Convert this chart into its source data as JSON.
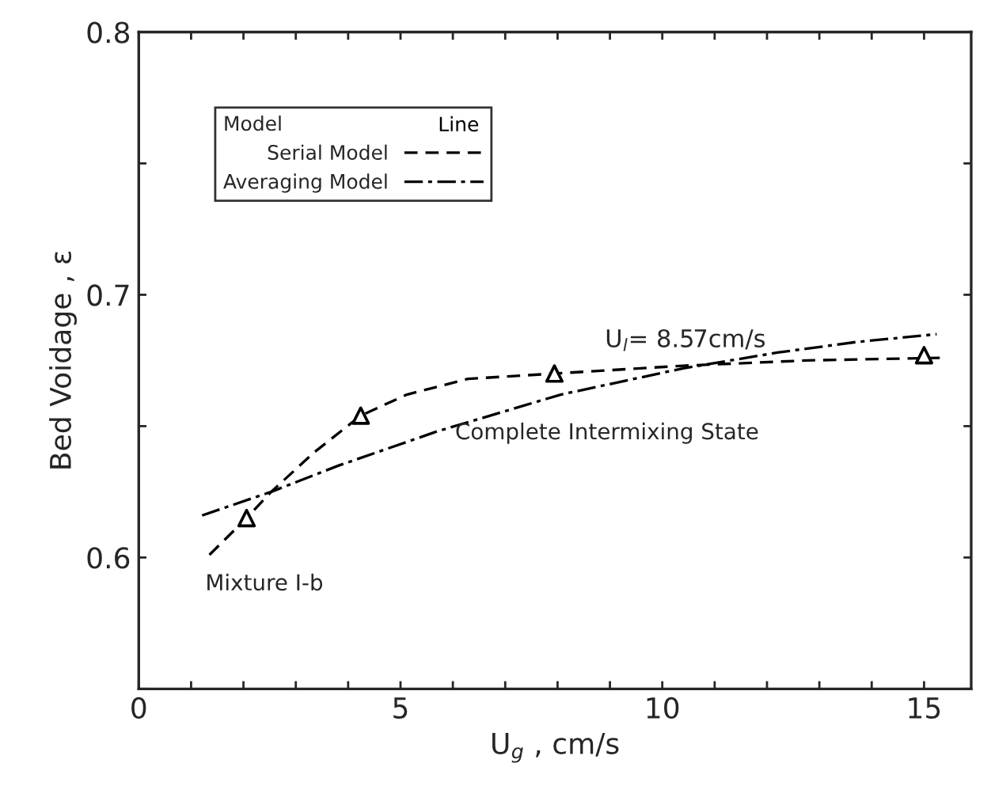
{
  "chart_data": {
    "type": "line",
    "xlabel": "U$_{g}$ , cm/s",
    "ylabel": "Bed Voidage , ε",
    "legend_title": "Model",
    "xlim": [
      0,
      15.9
    ],
    "ylim": [
      0.55,
      0.8
    ],
    "xticks": [
      0,
      {
        "value": 1,
        "label": null
      },
      {
        "value": 2,
        "label": null
      },
      {
        "value": 3,
        "label": null
      },
      {
        "value": 4,
        "label": null
      },
      5,
      {
        "value": 6,
        "label": null
      },
      {
        "value": 7,
        "label": null
      },
      {
        "value": 8,
        "label": null
      },
      {
        "value": 9,
        "label": null
      },
      10,
      {
        "value": 11,
        "label": null
      },
      {
        "value": 12,
        "label": null
      },
      {
        "value": 13,
        "label": null
      },
      {
        "value": 14,
        "label": null
      },
      15
    ],
    "yticks": [
      {
        "value": 0.55,
        "label": null
      },
      0.6,
      {
        "value": 0.65,
        "label": null
      },
      0.7,
      {
        "value": 0.75,
        "label": null
      },
      0.8
    ],
    "grid": false,
    "legend": "top left",
    "series": [
      {
        "name": "Serial Model",
        "color": "#000000",
        "line_style": "dashed",
        "x": [
          1.35,
          2.06,
          2.53,
          3.35,
          4.24,
          5.12,
          6.29,
          7.94,
          10.4,
          12.76,
          15.3
        ],
        "values": [
          0.601,
          0.615,
          0.625,
          0.64,
          0.654,
          0.662,
          0.668,
          0.67,
          0.673,
          0.675,
          0.676
        ]
      },
      {
        "name": "Averaging Model",
        "color": "#000000",
        "line_style": "dashdot",
        "x": [
          1.21,
          2.53,
          3.82,
          5.7,
          8.06,
          10.4,
          12.2,
          13.7,
          15.24
        ],
        "values": [
          0.616,
          0.625,
          0.635,
          0.648,
          0.662,
          0.672,
          0.678,
          0.682,
          0.685
        ]
      },
      {
        "type": "scatter",
        "color": "#000000",
        "marker": "triangle",
        "x": [
          2.06,
          4.24,
          7.94,
          15.0
        ],
        "values": [
          0.615,
          0.654,
          0.67,
          0.677
        ]
      }
    ],
    "annotations": [
      "Line",
      "U$_{l}$= 8.57cm/s",
      "Complete Intermixing State",
      "Mixture I-b"
    ]
  }
}
